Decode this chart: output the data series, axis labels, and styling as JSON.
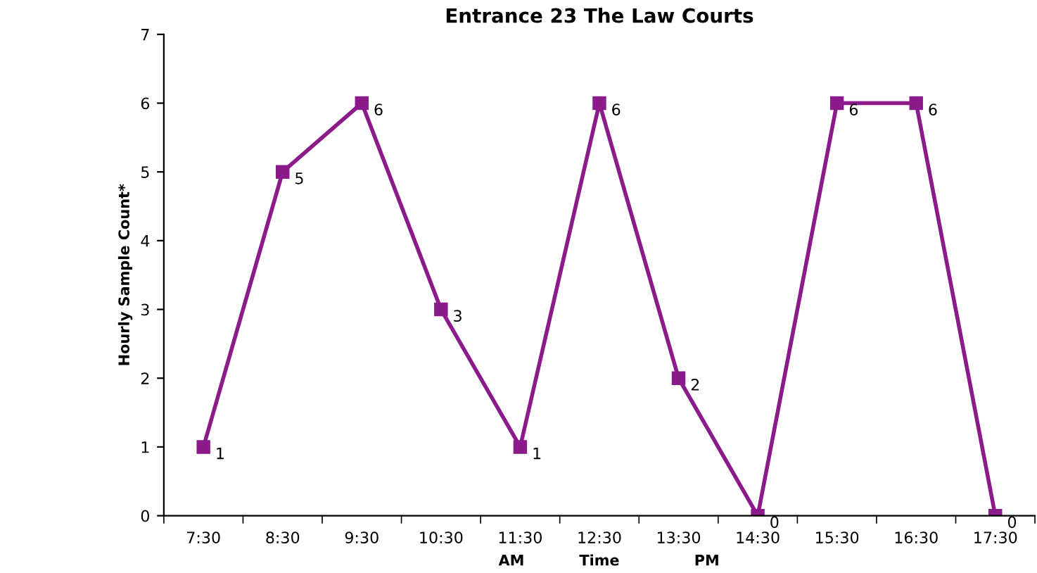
{
  "chart_data": {
    "type": "line",
    "title": "Entrance 23 The Law Courts",
    "xlabel": "Time",
    "ylabel": "Hourly Sample Count*",
    "annotations": [
      "AM",
      "PM"
    ],
    "categories": [
      "7:30",
      "8:30",
      "9:30",
      "10:30",
      "11:30",
      "12:30",
      "13:30",
      "14:30",
      "15:30",
      "16:30",
      "17:30"
    ],
    "series": [
      {
        "color": "#8b1a8b",
        "values": [
          1,
          5,
          6,
          3,
          1,
          6,
          2,
          0,
          6,
          6,
          0
        ]
      }
    ],
    "ylim": [
      0,
      7
    ],
    "yticks": [
      0,
      1,
      2,
      3,
      4,
      5,
      6,
      7
    ],
    "marker": "square",
    "line_style": "solid",
    "data_labels": true,
    "grid": false,
    "legend": false
  }
}
